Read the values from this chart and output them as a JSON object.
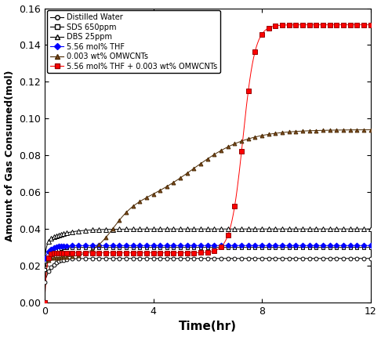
{
  "title": "",
  "xlabel": "Time(hr)",
  "ylabel": "Amount of Gas Consumed(mol)",
  "xlim": [
    0,
    12
  ],
  "ylim": [
    0,
    0.16
  ],
  "xticks": [
    0,
    4,
    8,
    12
  ],
  "yticks": [
    0,
    0.02,
    0.04,
    0.06,
    0.08,
    0.1,
    0.12,
    0.14,
    0.16
  ],
  "series": {
    "distilled_water": {
      "label": "Distilled Water",
      "color": "#000000",
      "marker": "o",
      "markerfacecolor": "white",
      "markersize": 3.5
    },
    "sds_650ppm": {
      "label": "SDS 650ppm",
      "color": "#000000",
      "marker": "s",
      "markerfacecolor": "white",
      "markersize": 3.5
    },
    "dbs_25ppm": {
      "label": "DBS 25ppm",
      "color": "#000000",
      "marker": "^",
      "markerfacecolor": "white",
      "markersize": 4.0
    },
    "thf": {
      "label": "5.56 mol% THF",
      "color": "#0000ff",
      "marker": "D",
      "markerfacecolor": "#0000ff",
      "markersize": 3.5
    },
    "omwcnts": {
      "label": "0.003 wt% OMWCNTs",
      "color": "#4a2800",
      "marker": "^",
      "markerfacecolor": "#7b4a1e",
      "markersize": 3.5
    },
    "thf_omwcnts": {
      "label": "5.56 mol% THF + 0.003 wt% OMWCNTs",
      "color": "#ff0000",
      "marker": "s",
      "markerfacecolor": "#ff0000",
      "markersize": 4.5
    }
  }
}
